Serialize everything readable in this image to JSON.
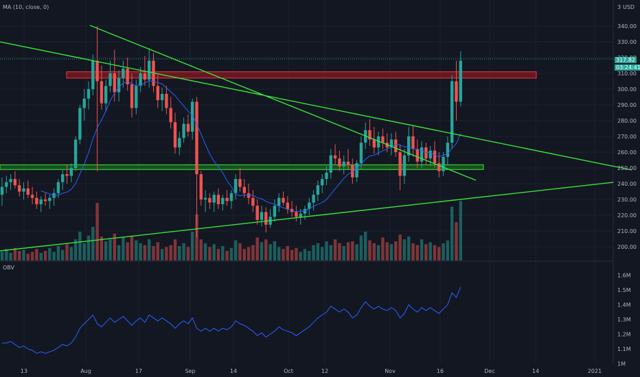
{
  "indicator_label": "MA (10, close, 0)",
  "obv_label": "OBV",
  "currency": "USD",
  "price_tag": "317.82",
  "countdown_tag": "03:24:41",
  "top_right_fragment": "3",
  "colors": {
    "background": "#131722",
    "grid": "#1e222d",
    "up": "#26a69a",
    "down": "#ef5350",
    "trendline": "#39e639",
    "ma": "#2962ff",
    "obv": "#2962ff",
    "resistance_fill": "#801922",
    "support_fill": "#1b5e20"
  },
  "chart_data": {
    "type": "candlestick",
    "price_axis": {
      "range": [
        190,
        350
      ],
      "ticks": [
        "340.00",
        "330.00",
        "320.00",
        "310.00",
        "300.00",
        "290.00",
        "280.00",
        "270.00",
        "260.00",
        "250.00",
        "240.00",
        "230.00",
        "220.00",
        "210.00",
        "200.00"
      ]
    },
    "obv_axis": {
      "range": [
        0.95,
        1.68
      ],
      "ticks": [
        "1.6M",
        "1.5M",
        "1.4M",
        "1.3M",
        "1.2M",
        "1.1M",
        "1M"
      ]
    },
    "x_ticks": [
      "13",
      "Aug",
      "17",
      "Sep",
      "14",
      "Oct",
      "12",
      "Nov",
      "16",
      "Dec",
      "14",
      "2021"
    ],
    "candles": [
      {
        "o": 233,
        "h": 244,
        "l": 226,
        "c": 238
      },
      {
        "o": 238,
        "h": 245,
        "l": 234,
        "c": 241
      },
      {
        "o": 241,
        "h": 246,
        "l": 236,
        "c": 243
      },
      {
        "o": 243,
        "h": 248,
        "l": 237,
        "c": 239
      },
      {
        "o": 239,
        "h": 243,
        "l": 232,
        "c": 235
      },
      {
        "o": 235,
        "h": 241,
        "l": 230,
        "c": 237
      },
      {
        "o": 237,
        "h": 242,
        "l": 231,
        "c": 233
      },
      {
        "o": 233,
        "h": 238,
        "l": 227,
        "c": 231
      },
      {
        "o": 231,
        "h": 235,
        "l": 224,
        "c": 227
      },
      {
        "o": 227,
        "h": 232,
        "l": 222,
        "c": 230
      },
      {
        "o": 230,
        "h": 234,
        "l": 226,
        "c": 229
      },
      {
        "o": 229,
        "h": 233,
        "l": 224,
        "c": 231
      },
      {
        "o": 231,
        "h": 237,
        "l": 226,
        "c": 234
      },
      {
        "o": 234,
        "h": 243,
        "l": 231,
        "c": 241
      },
      {
        "o": 241,
        "h": 249,
        "l": 236,
        "c": 246
      },
      {
        "o": 246,
        "h": 252,
        "l": 240,
        "c": 245
      },
      {
        "o": 245,
        "h": 253,
        "l": 241,
        "c": 250
      },
      {
        "o": 250,
        "h": 270,
        "l": 248,
        "c": 268
      },
      {
        "o": 268,
        "h": 290,
        "l": 265,
        "c": 288
      },
      {
        "o": 288,
        "h": 300,
        "l": 280,
        "c": 294
      },
      {
        "o": 294,
        "h": 305,
        "l": 287,
        "c": 300
      },
      {
        "o": 300,
        "h": 322,
        "l": 296,
        "c": 318
      },
      {
        "o": 318,
        "h": 340,
        "l": 248,
        "c": 305
      },
      {
        "o": 305,
        "h": 315,
        "l": 287,
        "c": 291
      },
      {
        "o": 291,
        "h": 306,
        "l": 286,
        "c": 302
      },
      {
        "o": 302,
        "h": 318,
        "l": 298,
        "c": 310
      },
      {
        "o": 310,
        "h": 325,
        "l": 292,
        "c": 298
      },
      {
        "o": 298,
        "h": 312,
        "l": 292,
        "c": 307
      },
      {
        "o": 307,
        "h": 318,
        "l": 301,
        "c": 313
      },
      {
        "o": 313,
        "h": 320,
        "l": 299,
        "c": 303
      },
      {
        "o": 303,
        "h": 310,
        "l": 282,
        "c": 288
      },
      {
        "o": 288,
        "h": 306,
        "l": 284,
        "c": 302
      },
      {
        "o": 302,
        "h": 314,
        "l": 298,
        "c": 310
      },
      {
        "o": 310,
        "h": 321,
        "l": 302,
        "c": 306
      },
      {
        "o": 306,
        "h": 326,
        "l": 301,
        "c": 318
      },
      {
        "o": 318,
        "h": 323,
        "l": 298,
        "c": 302
      },
      {
        "o": 302,
        "h": 309,
        "l": 288,
        "c": 293
      },
      {
        "o": 293,
        "h": 301,
        "l": 286,
        "c": 297
      },
      {
        "o": 297,
        "h": 302,
        "l": 284,
        "c": 288
      },
      {
        "o": 288,
        "h": 295,
        "l": 275,
        "c": 279
      },
      {
        "o": 279,
        "h": 285,
        "l": 259,
        "c": 263
      },
      {
        "o": 263,
        "h": 273,
        "l": 258,
        "c": 269
      },
      {
        "o": 269,
        "h": 282,
        "l": 266,
        "c": 278
      },
      {
        "o": 278,
        "h": 284,
        "l": 270,
        "c": 273
      },
      {
        "o": 273,
        "h": 294,
        "l": 268,
        "c": 292
      },
      {
        "o": 292,
        "h": 295,
        "l": 206,
        "c": 246
      },
      {
        "o": 246,
        "h": 248,
        "l": 226,
        "c": 230
      },
      {
        "o": 230,
        "h": 236,
        "l": 222,
        "c": 231
      },
      {
        "o": 231,
        "h": 234,
        "l": 224,
        "c": 228
      },
      {
        "o": 228,
        "h": 235,
        "l": 222,
        "c": 233
      },
      {
        "o": 233,
        "h": 237,
        "l": 224,
        "c": 227
      },
      {
        "o": 227,
        "h": 233,
        "l": 223,
        "c": 231
      },
      {
        "o": 231,
        "h": 236,
        "l": 226,
        "c": 229
      },
      {
        "o": 229,
        "h": 236,
        "l": 224,
        "c": 234
      },
      {
        "o": 234,
        "h": 246,
        "l": 230,
        "c": 243
      },
      {
        "o": 243,
        "h": 250,
        "l": 235,
        "c": 238
      },
      {
        "o": 238,
        "h": 243,
        "l": 231,
        "c": 234
      },
      {
        "o": 234,
        "h": 240,
        "l": 227,
        "c": 231
      },
      {
        "o": 231,
        "h": 236,
        "l": 222,
        "c": 226
      },
      {
        "o": 226,
        "h": 230,
        "l": 214,
        "c": 217
      },
      {
        "o": 217,
        "h": 226,
        "l": 213,
        "c": 222
      },
      {
        "o": 222,
        "h": 225,
        "l": 209,
        "c": 214
      },
      {
        "o": 214,
        "h": 224,
        "l": 212,
        "c": 219
      },
      {
        "o": 219,
        "h": 230,
        "l": 216,
        "c": 226
      },
      {
        "o": 226,
        "h": 234,
        "l": 222,
        "c": 231
      },
      {
        "o": 231,
        "h": 235,
        "l": 226,
        "c": 228
      },
      {
        "o": 228,
        "h": 232,
        "l": 221,
        "c": 224
      },
      {
        "o": 224,
        "h": 229,
        "l": 219,
        "c": 222
      },
      {
        "o": 222,
        "h": 226,
        "l": 216,
        "c": 219
      },
      {
        "o": 219,
        "h": 224,
        "l": 214,
        "c": 221
      },
      {
        "o": 221,
        "h": 226,
        "l": 217,
        "c": 224
      },
      {
        "o": 224,
        "h": 231,
        "l": 220,
        "c": 228
      },
      {
        "o": 228,
        "h": 236,
        "l": 223,
        "c": 233
      },
      {
        "o": 233,
        "h": 242,
        "l": 229,
        "c": 239
      },
      {
        "o": 239,
        "h": 246,
        "l": 234,
        "c": 243
      },
      {
        "o": 243,
        "h": 251,
        "l": 239,
        "c": 247
      },
      {
        "o": 247,
        "h": 262,
        "l": 243,
        "c": 258
      },
      {
        "o": 258,
        "h": 265,
        "l": 252,
        "c": 256
      },
      {
        "o": 256,
        "h": 261,
        "l": 248,
        "c": 251
      },
      {
        "o": 251,
        "h": 258,
        "l": 246,
        "c": 254
      },
      {
        "o": 254,
        "h": 262,
        "l": 249,
        "c": 252
      },
      {
        "o": 252,
        "h": 256,
        "l": 240,
        "c": 244
      },
      {
        "o": 244,
        "h": 255,
        "l": 241,
        "c": 253
      },
      {
        "o": 253,
        "h": 270,
        "l": 249,
        "c": 266
      },
      {
        "o": 266,
        "h": 279,
        "l": 262,
        "c": 274
      },
      {
        "o": 274,
        "h": 281,
        "l": 264,
        "c": 268
      },
      {
        "o": 268,
        "h": 276,
        "l": 259,
        "c": 263
      },
      {
        "o": 263,
        "h": 273,
        "l": 258,
        "c": 270
      },
      {
        "o": 270,
        "h": 275,
        "l": 262,
        "c": 266
      },
      {
        "o": 266,
        "h": 272,
        "l": 260,
        "c": 263
      },
      {
        "o": 263,
        "h": 272,
        "l": 258,
        "c": 268
      },
      {
        "o": 268,
        "h": 273,
        "l": 257,
        "c": 260
      },
      {
        "o": 260,
        "h": 265,
        "l": 236,
        "c": 245
      },
      {
        "o": 245,
        "h": 262,
        "l": 240,
        "c": 258
      },
      {
        "o": 258,
        "h": 276,
        "l": 254,
        "c": 270
      },
      {
        "o": 270,
        "h": 277,
        "l": 257,
        "c": 262
      },
      {
        "o": 262,
        "h": 268,
        "l": 250,
        "c": 254
      },
      {
        "o": 254,
        "h": 267,
        "l": 250,
        "c": 263
      },
      {
        "o": 263,
        "h": 266,
        "l": 252,
        "c": 256
      },
      {
        "o": 256,
        "h": 264,
        "l": 251,
        "c": 261
      },
      {
        "o": 261,
        "h": 267,
        "l": 250,
        "c": 253
      },
      {
        "o": 253,
        "h": 260,
        "l": 244,
        "c": 248
      },
      {
        "o": 248,
        "h": 260,
        "l": 245,
        "c": 257
      },
      {
        "o": 257,
        "h": 270,
        "l": 252,
        "c": 266
      },
      {
        "o": 266,
        "h": 309,
        "l": 262,
        "c": 305
      },
      {
        "o": 305,
        "h": 318,
        "l": 280,
        "c": 292
      },
      {
        "o": 292,
        "h": 324,
        "l": 289,
        "c": 318
      }
    ],
    "volumes": [
      0.09,
      0.12,
      0.08,
      0.13,
      0.1,
      0.11,
      0.07,
      0.09,
      0.12,
      0.08,
      0.1,
      0.13,
      0.09,
      0.15,
      0.11,
      0.17,
      0.14,
      0.22,
      0.3,
      0.18,
      0.26,
      0.35,
      0.6,
      0.25,
      0.2,
      0.22,
      0.28,
      0.16,
      0.24,
      0.19,
      0.26,
      0.21,
      0.18,
      0.16,
      0.22,
      0.15,
      0.19,
      0.12,
      0.14,
      0.16,
      0.22,
      0.15,
      0.18,
      0.14,
      0.3,
      0.48,
      0.22,
      0.18,
      0.14,
      0.17,
      0.12,
      0.15,
      0.1,
      0.13,
      0.21,
      0.18,
      0.12,
      0.14,
      0.16,
      0.24,
      0.19,
      0.22,
      0.17,
      0.2,
      0.14,
      0.12,
      0.15,
      0.11,
      0.13,
      0.09,
      0.12,
      0.1,
      0.16,
      0.18,
      0.14,
      0.2,
      0.16,
      0.22,
      0.18,
      0.15,
      0.19,
      0.2,
      0.17,
      0.26,
      0.3,
      0.21,
      0.18,
      0.16,
      0.24,
      0.19,
      0.17,
      0.2,
      0.27,
      0.22,
      0.25,
      0.18,
      0.16,
      0.22,
      0.17,
      0.19,
      0.16,
      0.14,
      0.18,
      0.21,
      0.56,
      0.4,
      0.62
    ],
    "obv": [
      1.14,
      1.14,
      1.15,
      1.13,
      1.11,
      1.12,
      1.1,
      1.09,
      1.07,
      1.08,
      1.07,
      1.08,
      1.09,
      1.11,
      1.13,
      1.12,
      1.14,
      1.18,
      1.24,
      1.27,
      1.3,
      1.33,
      1.27,
      1.25,
      1.28,
      1.31,
      1.28,
      1.3,
      1.32,
      1.29,
      1.26,
      1.29,
      1.31,
      1.28,
      1.33,
      1.31,
      1.29,
      1.31,
      1.29,
      1.27,
      1.24,
      1.27,
      1.29,
      1.27,
      1.31,
      1.24,
      1.22,
      1.24,
      1.22,
      1.24,
      1.22,
      1.24,
      1.23,
      1.25,
      1.29,
      1.27,
      1.26,
      1.24,
      1.22,
      1.19,
      1.21,
      1.18,
      1.2,
      1.22,
      1.25,
      1.23,
      1.22,
      1.21,
      1.19,
      1.21,
      1.23,
      1.25,
      1.28,
      1.31,
      1.33,
      1.35,
      1.39,
      1.37,
      1.35,
      1.37,
      1.35,
      1.31,
      1.33,
      1.38,
      1.42,
      1.39,
      1.37,
      1.39,
      1.37,
      1.36,
      1.38,
      1.36,
      1.31,
      1.34,
      1.4,
      1.37,
      1.35,
      1.38,
      1.36,
      1.38,
      1.36,
      1.34,
      1.37,
      1.4,
      1.48,
      1.45,
      1.52
    ],
    "zones": [
      {
        "name": "resistance",
        "y1": 307,
        "y2": 311
      },
      {
        "name": "support",
        "y1": 249,
        "y2": 252
      }
    ]
  }
}
